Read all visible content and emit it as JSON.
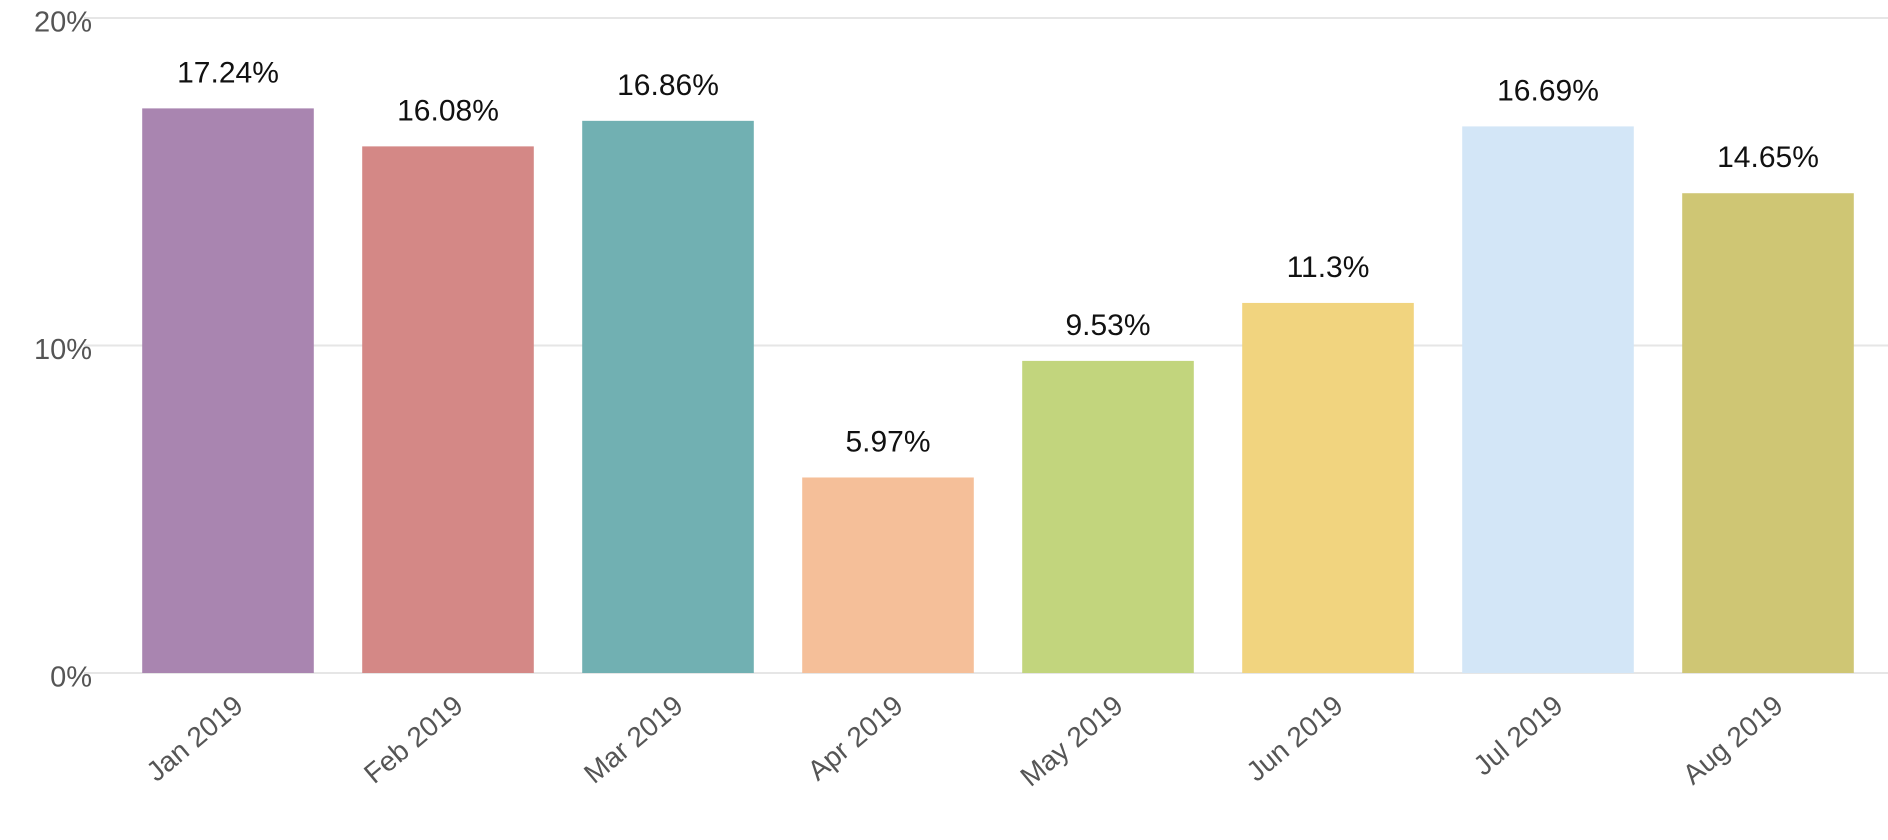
{
  "chart_data": {
    "type": "bar",
    "categories": [
      "Jan 2019",
      "Feb 2019",
      "Mar 2019",
      "Apr 2019",
      "May 2019",
      "Jun 2019",
      "Jul 2019",
      "Aug 2019"
    ],
    "values": [
      17.24,
      16.08,
      16.86,
      5.97,
      9.53,
      11.3,
      16.69,
      14.65
    ],
    "value_labels": [
      "17.24%",
      "16.08%",
      "16.86%",
      "5.97%",
      "9.53%",
      "11.3%",
      "16.69%",
      "14.65%"
    ],
    "colors": [
      "#a985b0",
      "#d48886",
      "#71b0b2",
      "#f5bf99",
      "#c2d57d",
      "#f1d47f",
      "#d3e6f7",
      "#cfc674"
    ],
    "ylim": [
      0,
      20
    ],
    "yticks": [
      {
        "value": 0,
        "label": "0%"
      },
      {
        "value": 10,
        "label": "10%"
      },
      {
        "value": 20,
        "label": "20%"
      }
    ],
    "grid": true
  }
}
